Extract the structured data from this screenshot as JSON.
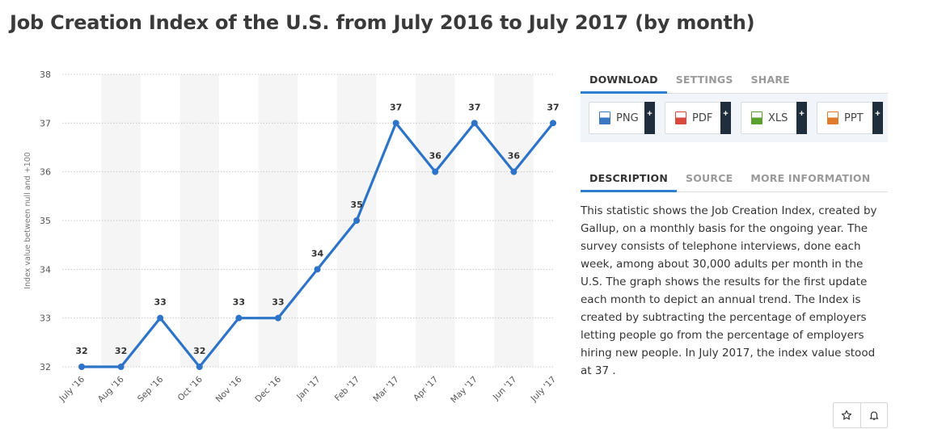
{
  "title": "Job Creation Index of the U.S. from July 2016 to July 2017 (by month)",
  "chart_data": {
    "type": "line",
    "categories": [
      "July '16",
      "Aug '16",
      "Sep '16",
      "Oct '16",
      "Nov '16",
      "Dec '16",
      "Jan '17",
      "Feb '17",
      "Mar '17",
      "Apr '17",
      "May '17",
      "Jun '17",
      "July '17"
    ],
    "values": [
      32,
      32,
      33,
      32,
      33,
      33,
      34,
      35,
      37,
      36,
      37,
      36,
      37
    ],
    "ylabel": "Index value between null and +100",
    "xlabel": "",
    "ylim": [
      32,
      38
    ],
    "yticks": [
      32,
      33,
      34,
      35,
      36,
      37,
      38
    ],
    "grid": true,
    "line_color": "#2d74c9",
    "band_color": "#f5f5f5"
  },
  "panel": {
    "tabs": [
      "DOWNLOAD",
      "SETTINGS",
      "SHARE"
    ],
    "downloads": [
      {
        "label": "PNG",
        "icon": "png-file-icon",
        "color": "#3b78c4"
      },
      {
        "label": "PDF",
        "icon": "pdf-file-icon",
        "color": "#d94a3d"
      },
      {
        "label": "XLS",
        "icon": "xls-file-icon",
        "color": "#5aa02c"
      },
      {
        "label": "PPT",
        "icon": "ppt-file-icon",
        "color": "#e07a2e"
      }
    ],
    "plus": "+",
    "info_tabs": [
      "DESCRIPTION",
      "SOURCE",
      "MORE INFORMATION"
    ],
    "description": "This statistic shows the Job Creation Index, created by Gallup, on a monthly basis for the ongoing year. The survey consists of telephone interviews, done each week, among about 30,000 adults per month in the U.S. The graph shows the results for the first update each month to depict an annual trend. The Index is created by subtracting the percentage of employers letting people go from the percentage of employers hiring new people. In July 2017, the index value stood at 37 ."
  },
  "actions": [
    "star-icon",
    "bell-icon"
  ]
}
